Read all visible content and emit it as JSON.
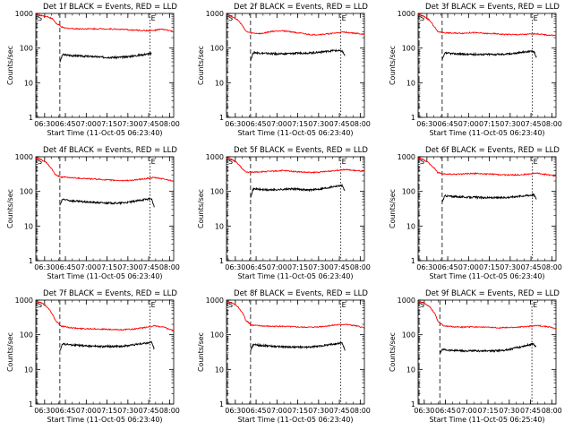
{
  "chart_data": [
    {
      "type": "line",
      "title": "Det 1f BLACK = Events, RED = LLD",
      "xlabel": "Start Time (11-Oct-05 06:23:40)",
      "ylabel": "Counts/sec",
      "yscale": "log",
      "ylim": [
        1,
        1000
      ],
      "yticks": [
        "1",
        "10",
        "100",
        "1000"
      ],
      "xlim": [
        "06:23:40",
        "08:03:00"
      ],
      "xticks": [
        "06:30",
        "06:45",
        "07:00",
        "07:15",
        "07:30",
        "07:45",
        "08:00"
      ],
      "markers": [
        {
          "label": "S",
          "time": "06:24:20"
        },
        {
          "label": "E",
          "time": "07:46:00"
        }
      ],
      "series": [
        {
          "color": "#000000",
          "start": "06:41:00",
          "end": "07:47:00",
          "t": [
            0,
            2,
            6,
            12,
            18,
            24,
            30,
            36,
            42,
            48,
            54,
            60,
            66
          ],
          "values": [
            40,
            65,
            62,
            60,
            58,
            57,
            55,
            54,
            54,
            56,
            60,
            65,
            70
          ]
        },
        {
          "color": "#ff0000",
          "start": "06:23:40",
          "end": "08:03:00",
          "t": [
            0,
            1,
            3,
            5,
            8,
            12,
            15,
            20,
            30,
            40,
            50,
            60,
            70,
            80,
            85,
            90,
            95,
            99
          ],
          "values": [
            900,
            900,
            880,
            860,
            820,
            700,
            500,
            380,
            360,
            360,
            360,
            350,
            330,
            320,
            320,
            350,
            330,
            300
          ]
        }
      ]
    },
    {
      "type": "line",
      "title": "Det 2f BLACK = Events, RED = LLD",
      "xlabel": "Start Time (11-Oct-05 06:23:40)",
      "ylabel": "Counts/sec",
      "yscale": "log",
      "ylim": [
        1,
        1000
      ],
      "yticks": [
        "1",
        "10",
        "100",
        "1000"
      ],
      "xlim": [
        "06:23:40",
        "08:03:00"
      ],
      "xticks": [
        "06:30",
        "06:45",
        "07:00",
        "07:15",
        "07:30",
        "07:45",
        "08:00"
      ],
      "markers": [
        {
          "label": "S",
          "time": "06:24:20"
        },
        {
          "label": "E",
          "time": "07:46:00"
        }
      ],
      "series": [
        {
          "color": "#000000",
          "start": "06:41:00",
          "end": "07:49:00",
          "t": [
            0,
            2,
            6,
            12,
            18,
            24,
            30,
            36,
            42,
            48,
            54,
            60,
            66,
            68
          ],
          "values": [
            45,
            75,
            72,
            70,
            68,
            68,
            70,
            72,
            72,
            75,
            80,
            85,
            82,
            60
          ]
        },
        {
          "color": "#ff0000",
          "start": "06:23:40",
          "end": "08:03:00",
          "t": [
            0,
            1,
            3,
            5,
            8,
            12,
            14,
            18,
            25,
            32,
            40,
            48,
            55,
            62,
            70,
            78,
            85,
            92,
            99
          ],
          "values": [
            900,
            900,
            850,
            780,
            650,
            420,
            300,
            270,
            260,
            300,
            320,
            290,
            260,
            240,
            250,
            270,
            290,
            270,
            250
          ]
        }
      ]
    },
    {
      "type": "line",
      "title": "Det 3f BLACK = Events, RED = LLD",
      "xlabel": "Start Time (11-Oct-05 06:23:40)",
      "ylabel": "Counts/sec",
      "yscale": "log",
      "ylim": [
        1,
        1000
      ],
      "yticks": [
        "1",
        "10",
        "100",
        "1000"
      ],
      "xlim": [
        "06:23:40",
        "08:03:00"
      ],
      "xticks": [
        "06:30",
        "06:45",
        "07:00",
        "07:15",
        "07:30",
        "07:45",
        "08:00"
      ],
      "markers": [
        {
          "label": "S",
          "time": "06:24:20"
        },
        {
          "label": "E",
          "time": "07:46:00"
        }
      ],
      "series": [
        {
          "color": "#000000",
          "start": "06:41:00",
          "end": "07:49:00",
          "t": [
            0,
            2,
            6,
            12,
            18,
            24,
            30,
            36,
            42,
            48,
            54,
            60,
            66,
            68
          ],
          "values": [
            45,
            72,
            70,
            68,
            66,
            66,
            66,
            66,
            66,
            68,
            72,
            78,
            80,
            55
          ]
        },
        {
          "color": "#ff0000",
          "start": "06:23:40",
          "end": "08:03:00",
          "t": [
            0,
            1,
            3,
            5,
            8,
            12,
            14,
            18,
            25,
            32,
            40,
            48,
            55,
            62,
            70,
            78,
            85,
            92,
            99
          ],
          "values": [
            900,
            900,
            850,
            780,
            650,
            400,
            300,
            280,
            270,
            270,
            280,
            265,
            260,
            250,
            245,
            250,
            260,
            240,
            230
          ]
        }
      ]
    },
    {
      "type": "line",
      "title": "Det 4f BLACK = Events, RED = LLD",
      "xlabel": "Start Time (11-Oct-05 06:23:40)",
      "ylabel": "Counts/sec",
      "yscale": "log",
      "ylim": [
        1,
        1000
      ],
      "yticks": [
        "1",
        "10",
        "100",
        "1000"
      ],
      "xlim": [
        "06:23:40",
        "08:03:00"
      ],
      "xticks": [
        "06:30",
        "06:45",
        "07:00",
        "07:15",
        "07:30",
        "07:45",
        "08:00"
      ],
      "markers": [
        {
          "label": "S",
          "time": "06:24:20"
        },
        {
          "label": "E",
          "time": "07:46:00"
        }
      ],
      "series": [
        {
          "color": "#000000",
          "start": "06:41:00",
          "end": "07:49:00",
          "t": [
            0,
            2,
            6,
            12,
            18,
            24,
            30,
            36,
            42,
            48,
            54,
            60,
            66,
            68
          ],
          "values": [
            40,
            60,
            55,
            52,
            50,
            48,
            47,
            46,
            46,
            48,
            52,
            58,
            62,
            35
          ]
        },
        {
          "color": "#ff0000",
          "start": "06:23:40",
          "end": "08:03:00",
          "t": [
            0,
            1,
            3,
            5,
            8,
            12,
            14,
            18,
            25,
            32,
            40,
            48,
            55,
            62,
            70,
            78,
            85,
            92,
            99
          ],
          "values": [
            900,
            900,
            850,
            780,
            650,
            420,
            300,
            260,
            250,
            240,
            230,
            220,
            210,
            205,
            210,
            230,
            250,
            230,
            200
          ]
        }
      ]
    },
    {
      "type": "line",
      "title": "Det 5f BLACK = Events, RED = LLD",
      "xlabel": "Start Time (11-Oct-05 06:23:40)",
      "ylabel": "Counts/sec",
      "yscale": "log",
      "ylim": [
        1,
        1000
      ],
      "yticks": [
        "1",
        "10",
        "100",
        "1000"
      ],
      "xlim": [
        "06:23:40",
        "08:03:00"
      ],
      "xticks": [
        "06:30",
        "06:45",
        "07:00",
        "07:15",
        "07:30",
        "07:45",
        "08:00"
      ],
      "markers": [
        {
          "label": "S",
          "time": "06:24:20"
        },
        {
          "label": "E",
          "time": "07:46:00"
        }
      ],
      "series": [
        {
          "color": "#000000",
          "start": "06:41:00",
          "end": "07:49:00",
          "t": [
            0,
            2,
            6,
            12,
            18,
            24,
            30,
            36,
            42,
            48,
            54,
            60,
            66,
            68
          ],
          "values": [
            70,
            120,
            115,
            110,
            112,
            115,
            118,
            115,
            110,
            115,
            125,
            140,
            150,
            100
          ]
        },
        {
          "color": "#ff0000",
          "start": "06:23:40",
          "end": "08:03:00",
          "t": [
            0,
            1,
            3,
            5,
            8,
            12,
            14,
            18,
            25,
            32,
            40,
            48,
            55,
            62,
            70,
            78,
            85,
            92,
            99
          ],
          "values": [
            900,
            900,
            850,
            780,
            650,
            420,
            360,
            360,
            370,
            380,
            400,
            380,
            360,
            350,
            370,
            400,
            430,
            400,
            380
          ]
        }
      ]
    },
    {
      "type": "line",
      "title": "Det 6f BLACK = Events, RED = LLD",
      "xlabel": "Start Time (11-Oct-05 06:23:40)",
      "ylabel": "Counts/sec",
      "yscale": "log",
      "ylim": [
        1,
        1000
      ],
      "yticks": [
        "1",
        "10",
        "100",
        "1000"
      ],
      "xlim": [
        "06:23:40",
        "08:03:00"
      ],
      "xticks": [
        "06:30",
        "06:45",
        "07:00",
        "07:15",
        "07:30",
        "07:45",
        "08:00"
      ],
      "markers": [
        {
          "label": "S",
          "time": "06:24:20"
        },
        {
          "label": "E",
          "time": "07:46:00"
        }
      ],
      "series": [
        {
          "color": "#000000",
          "start": "06:41:00",
          "end": "07:49:00",
          "t": [
            0,
            2,
            6,
            12,
            18,
            24,
            30,
            36,
            42,
            48,
            54,
            60,
            66,
            68
          ],
          "values": [
            50,
            75,
            72,
            70,
            68,
            68,
            66,
            66,
            66,
            68,
            72,
            76,
            80,
            60
          ]
        },
        {
          "color": "#ff0000",
          "start": "06:23:40",
          "end": "08:03:00",
          "t": [
            0,
            1,
            3,
            5,
            8,
            12,
            14,
            18,
            25,
            32,
            40,
            48,
            55,
            62,
            70,
            78,
            85,
            92,
            99
          ],
          "values": [
            900,
            900,
            850,
            780,
            650,
            450,
            350,
            320,
            310,
            320,
            330,
            320,
            310,
            300,
            300,
            310,
            340,
            310,
            280
          ]
        }
      ]
    },
    {
      "type": "line",
      "title": "Det 7f BLACK = Events, RED = LLD",
      "xlabel": "Start Time (11-Oct-05 06:23:40)",
      "ylabel": "Counts/sec",
      "yscale": "log",
      "ylim": [
        1,
        1000
      ],
      "yticks": [
        "1",
        "10",
        "100",
        "1000"
      ],
      "xlim": [
        "06:23:40",
        "08:03:00"
      ],
      "xticks": [
        "06:30",
        "06:45",
        "07:00",
        "07:15",
        "07:30",
        "07:45",
        "08:00"
      ],
      "markers": [
        {
          "label": "S",
          "time": "06:24:20"
        },
        {
          "label": "E",
          "time": "07:46:00"
        }
      ],
      "series": [
        {
          "color": "#000000",
          "start": "06:41:00",
          "end": "07:49:00",
          "t": [
            0,
            2,
            6,
            12,
            18,
            24,
            30,
            36,
            42,
            48,
            54,
            60,
            66,
            68
          ],
          "values": [
            35,
            55,
            52,
            50,
            48,
            47,
            46,
            46,
            46,
            48,
            52,
            56,
            60,
            40
          ]
        },
        {
          "color": "#ff0000",
          "start": "06:23:40",
          "end": "08:03:00",
          "t": [
            0,
            1,
            3,
            5,
            8,
            12,
            14,
            18,
            25,
            32,
            40,
            48,
            55,
            62,
            70,
            78,
            85,
            92,
            99
          ],
          "values": [
            900,
            900,
            850,
            780,
            650,
            400,
            260,
            180,
            160,
            150,
            150,
            145,
            140,
            140,
            145,
            160,
            180,
            165,
            130
          ]
        }
      ]
    },
    {
      "type": "line",
      "title": "Det 8f BLACK = Events, RED = LLD",
      "xlabel": "Start Time (11-Oct-05 06:23:40)",
      "ylabel": "Counts/sec",
      "yscale": "log",
      "ylim": [
        1,
        1000
      ],
      "yticks": [
        "1",
        "10",
        "100",
        "1000"
      ],
      "xlim": [
        "06:23:40",
        "08:03:00"
      ],
      "xticks": [
        "06:30",
        "06:45",
        "07:00",
        "07:15",
        "07:30",
        "07:45",
        "08:00"
      ],
      "markers": [
        {
          "label": "S",
          "time": "06:24:20"
        },
        {
          "label": "E",
          "time": "07:46:00"
        }
      ],
      "series": [
        {
          "color": "#000000",
          "start": "06:41:00",
          "end": "07:49:00",
          "t": [
            0,
            2,
            6,
            12,
            18,
            24,
            30,
            36,
            42,
            48,
            54,
            60,
            66,
            68
          ],
          "values": [
            35,
            52,
            50,
            48,
            46,
            45,
            44,
            44,
            44,
            46,
            50,
            54,
            58,
            35
          ]
        },
        {
          "color": "#ff0000",
          "start": "06:23:40",
          "end": "08:03:00",
          "t": [
            0,
            1,
            3,
            5,
            8,
            12,
            14,
            18,
            25,
            32,
            40,
            48,
            55,
            62,
            70,
            78,
            85,
            92,
            99
          ],
          "values": [
            900,
            900,
            850,
            780,
            650,
            400,
            260,
            190,
            180,
            175,
            175,
            170,
            165,
            165,
            175,
            190,
            200,
            185,
            160
          ]
        }
      ]
    },
    {
      "type": "line",
      "title": "Det 9f BLACK = Events, RED = LLD",
      "xlabel": "Start Time (11-Oct-05 06:25:40)",
      "ylabel": "Counts/sec",
      "yscale": "log",
      "ylim": [
        1,
        1000
      ],
      "yticks": [
        "1",
        "10",
        "100",
        "1000"
      ],
      "xlim": [
        "06:25:40",
        "08:03:00"
      ],
      "xticks": [
        "06:30",
        "06:45",
        "07:00",
        "07:15",
        "07:30",
        "07:45",
        "08:00"
      ],
      "markers": [
        {
          "label": "S",
          "time": "06:26:20"
        },
        {
          "label": "E",
          "time": "07:46:00"
        }
      ],
      "series": [
        {
          "color": "#000000",
          "start": "06:41:00",
          "end": "07:49:00",
          "t": [
            0,
            2,
            6,
            12,
            18,
            24,
            30,
            36,
            42,
            48,
            54,
            60,
            66,
            68
          ],
          "values": [
            30,
            38,
            36,
            35,
            34,
            34,
            34,
            34,
            35,
            37,
            42,
            48,
            55,
            45
          ]
        },
        {
          "color": "#ff0000",
          "start": "06:25:40",
          "end": "08:03:00",
          "t": [
            0,
            1,
            3,
            5,
            8,
            12,
            14,
            18,
            25,
            32,
            40,
            48,
            55,
            62,
            70,
            78,
            85,
            92,
            97
          ],
          "values": [
            900,
            900,
            850,
            780,
            650,
            400,
            240,
            180,
            170,
            165,
            170,
            165,
            160,
            160,
            165,
            175,
            185,
            170,
            150
          ]
        }
      ]
    }
  ]
}
